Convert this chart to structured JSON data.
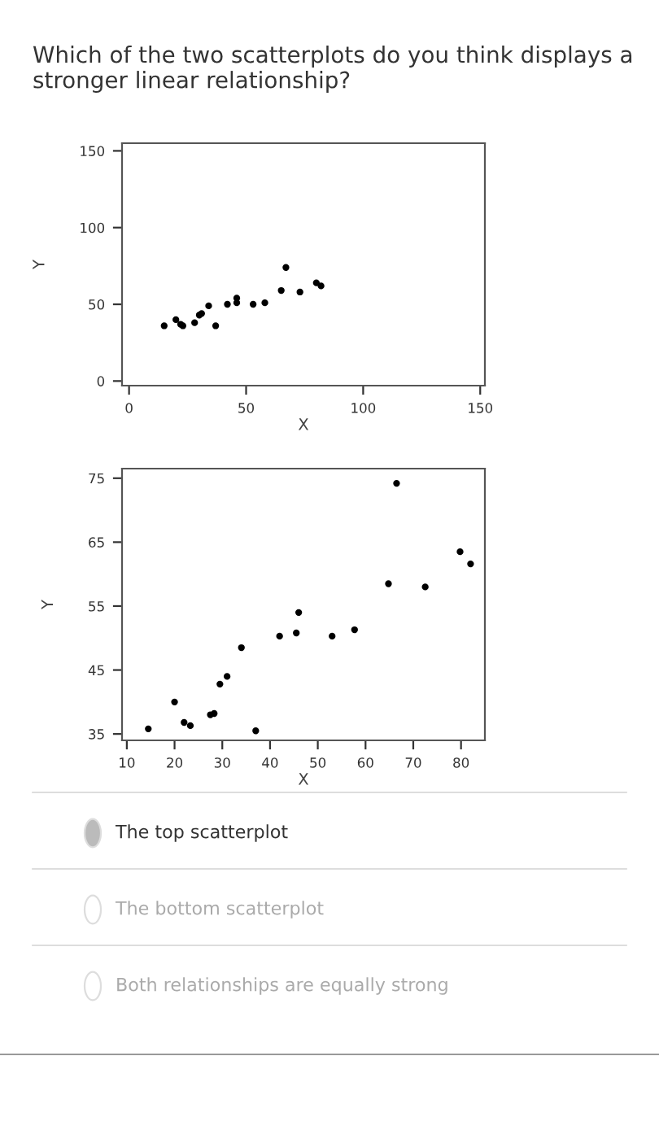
{
  "chart_data": [
    {
      "type": "scatter",
      "title": "Which of the two scatterplots do you think displays a stronger linear relationship?",
      "xlabel": "X",
      "ylabel": "Y",
      "marker": "circle",
      "grid": false,
      "legend": false,
      "xlim": [
        -3,
        152
      ],
      "ylim": [
        -3,
        155
      ],
      "xticks": [
        0,
        50,
        100,
        150
      ],
      "yticks": [
        0,
        50,
        100,
        150
      ],
      "series": [
        {
          "color": "#000000",
          "x": [
            15,
            20,
            22,
            23,
            null,
            28,
            30,
            31,
            34,
            37,
            42,
            46,
            46,
            53,
            58,
            65,
            67,
            73,
            80,
            82
          ],
          "values": [
            36,
            40,
            37,
            36,
            null,
            38,
            43,
            44,
            49,
            36,
            50,
            51,
            54,
            50,
            51,
            59,
            74,
            58,
            64,
            62
          ]
        }
      ]
    },
    {
      "type": "scatter",
      "xlabel": "X",
      "ylabel": "Y",
      "marker": "circle",
      "grid": false,
      "legend": false,
      "xlim": [
        9,
        85
      ],
      "ylim": [
        34,
        76.5
      ],
      "xticks": [
        10,
        20,
        30,
        40,
        50,
        60,
        70,
        80
      ],
      "yticks": [
        35,
        45,
        55,
        65,
        75
      ],
      "series": [
        {
          "color": "#000000",
          "x": [
            14.5,
            20,
            22,
            23.3,
            27.5,
            28.3,
            29.5,
            31,
            34,
            37,
            42,
            45.5,
            46,
            53,
            57.7,
            64.8,
            66.5,
            72.5,
            79.8,
            82
          ],
          "values": [
            35.8,
            40,
            36.8,
            36.3,
            38,
            38.2,
            42.8,
            44,
            48.5,
            35.5,
            50.3,
            50.8,
            54,
            50.3,
            51.3,
            58.5,
            74.2,
            58,
            63.5,
            61.6
          ]
        }
      ],
      "annotations": [
        "The top scatterplot",
        "The bottom scatterplot",
        "Both relationships are equally strong"
      ]
    }
  ]
}
